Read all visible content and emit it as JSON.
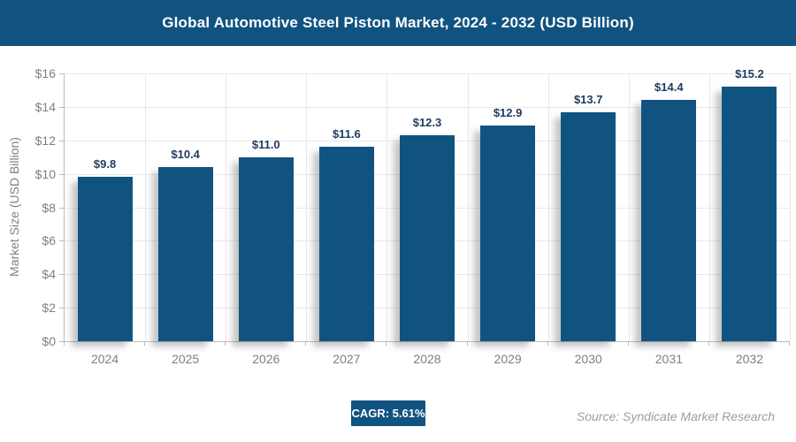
{
  "header": {
    "title": "Global Automotive Steel Piston Market, 2024 - 2032 (USD Billion)",
    "bg_color": "#115380",
    "text_color": "#ffffff"
  },
  "chart_data": {
    "type": "bar",
    "title": "Global Automotive Steel Piston Market, 2024 - 2032 (USD Billion)",
    "categories": [
      "2024",
      "2025",
      "2026",
      "2027",
      "2028",
      "2029",
      "2030",
      "2031",
      "2032"
    ],
    "values": [
      9.8,
      10.4,
      11.0,
      11.6,
      12.3,
      12.9,
      13.7,
      14.4,
      15.2
    ],
    "value_labels": [
      "$9.8",
      "$10.4",
      "$11.0",
      "$11.6",
      "$12.3",
      "$12.9",
      "$13.7",
      "$14.4",
      "$15.2"
    ],
    "xlabel": "",
    "ylabel": "Market Size (USD Billion)",
    "ylim": [
      0,
      16
    ],
    "ytick_step": 2,
    "ytick_labels": [
      "$0",
      "$2",
      "$4",
      "$6",
      "$8",
      "$10",
      "$12",
      "$14",
      "$16"
    ],
    "grid": true,
    "legend": "none",
    "bar_color": "#115380",
    "value_label_color": "#1f3a5f",
    "axis_label_color": "#7f7f7f",
    "gridline_color": "#e8e8e8"
  },
  "footer": {
    "cagr_label": "CAGR: 5.61%",
    "source": "Source: Syndicate Market Research"
  }
}
